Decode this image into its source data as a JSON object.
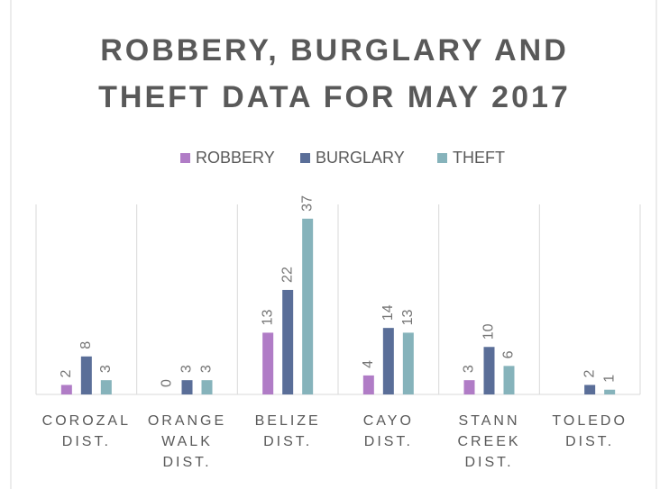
{
  "chart_data": {
    "type": "bar",
    "title": [
      "ROBBERY, BURGLARY AND",
      "THEFT DATA FOR MAY 2017"
    ],
    "categories": [
      "COROZAL DIST.",
      "ORANGE WALK DIST.",
      "BELIZE DIST.",
      "CAYO DIST.",
      "STANN CREEK DIST.",
      "TOLEDO DIST."
    ],
    "series": [
      {
        "name": "ROBBERY",
        "color": "#b07cc6",
        "values": [
          2,
          0,
          13,
          4,
          3,
          null
        ]
      },
      {
        "name": "BURGLARY",
        "color": "#5a6e98",
        "values": [
          8,
          3,
          22,
          14,
          10,
          2
        ]
      },
      {
        "name": "THEFT",
        "color": "#86b3bb",
        "values": [
          3,
          3,
          37,
          13,
          6,
          1
        ]
      }
    ],
    "ylim": [
      0,
      40
    ],
    "legend": "top"
  }
}
